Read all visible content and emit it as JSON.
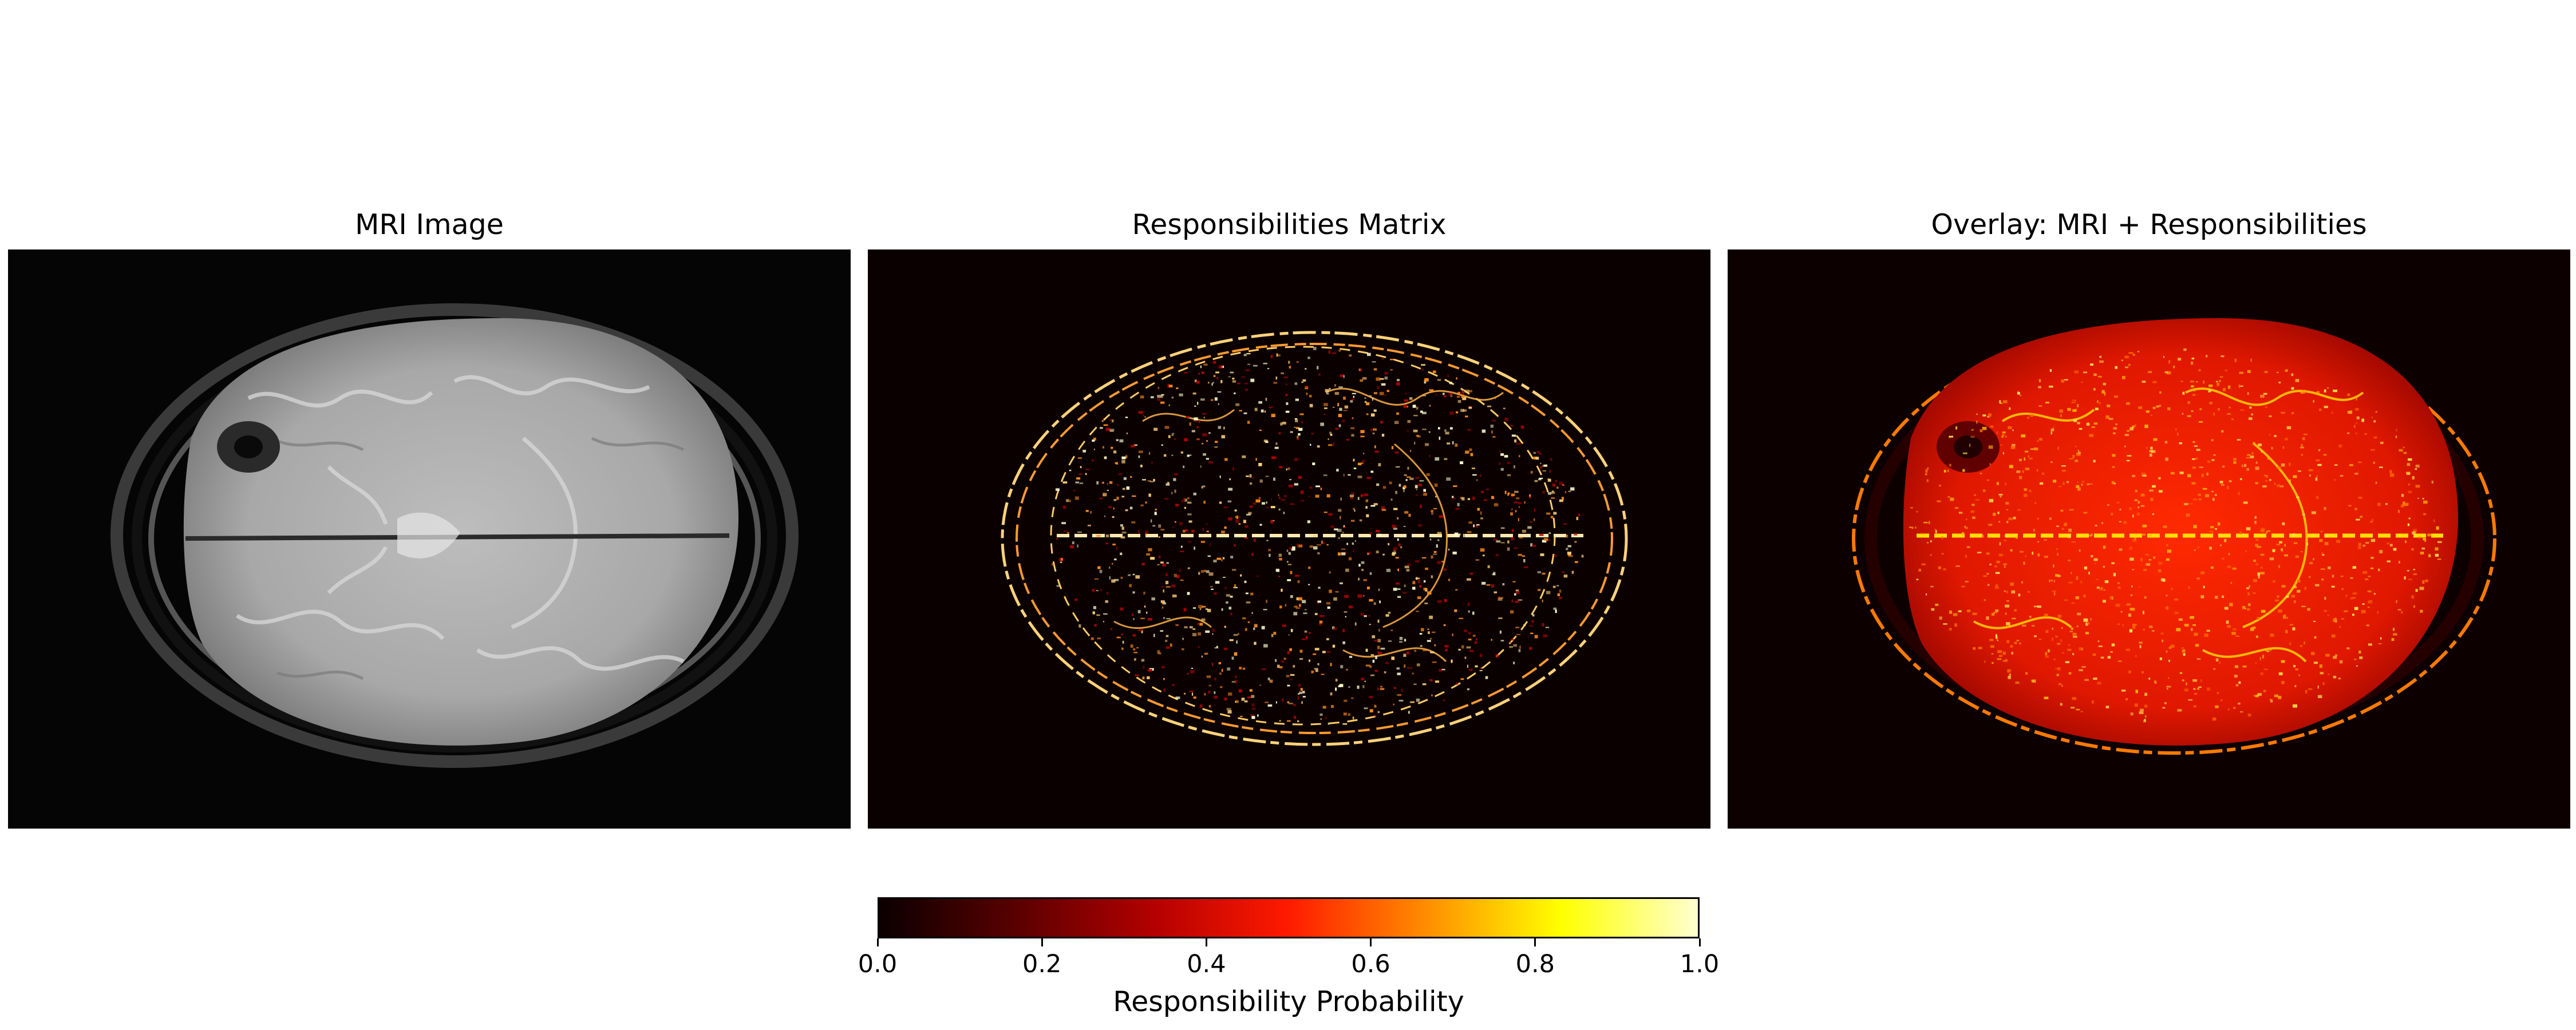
{
  "panels": [
    {
      "title": "MRI Image"
    },
    {
      "title": "Responsibilities Matrix"
    },
    {
      "title": "Overlay: MRI + Responsibilities"
    }
  ],
  "colorbar": {
    "label": "Responsibility Probability",
    "colormap": "hot",
    "range": [
      0.0,
      1.0
    ],
    "ticks": [
      "0.0",
      "0.2",
      "0.4",
      "0.6",
      "0.8",
      "1.0"
    ],
    "colors": [
      "#0b0000",
      "#5a0000",
      "#b30000",
      "#ff1a00",
      "#ff8c00",
      "#ffff00",
      "#ffffd0"
    ]
  }
}
